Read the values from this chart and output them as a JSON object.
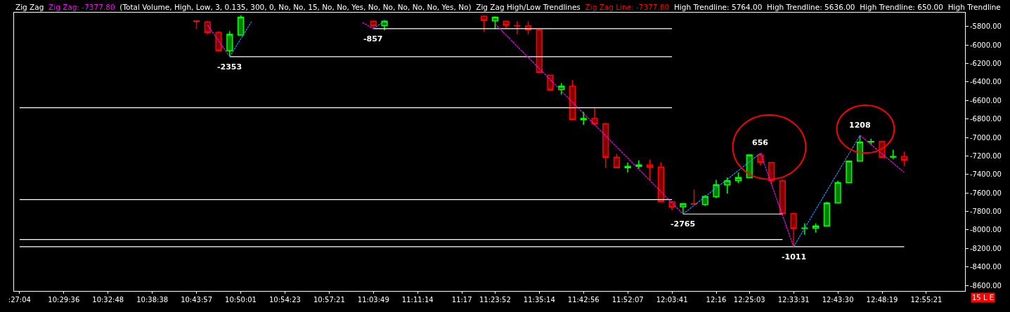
{
  "chart_data": {
    "type": "candlestick",
    "annotations": [
      "Zig Zag",
      "Zig Zag: -7377.80",
      "(Total Volume, High, Low, 3, 0.135, 300, 0, No, No, 15, No, No, Yes, No, No, No, No, No, Yes, No)",
      "Zig Zag High/Low Trendlines",
      "Zig Zag Line: -7377.80",
      "High Trendline: 5764.00",
      "High Trendline: 5636.00",
      "High Trendline: 650.00",
      "High Trendline",
      {
        "text": "-2353",
        "y": -6126
      },
      {
        "text": "-857",
        "y": -5823
      },
      {
        "text": "-2765",
        "y": -7828
      },
      {
        "text": "656",
        "y": -7170
      },
      {
        "text": "-1011",
        "y": -8182
      },
      {
        "text": "1208",
        "y": -6977
      },
      "15 L E"
    ],
    "categories": [
      ":27:04",
      null,
      null,
      null,
      "10:29:36",
      null,
      null,
      null,
      "10:32:48",
      null,
      null,
      null,
      "10:38:38",
      null,
      null,
      null,
      "10:43:57",
      null,
      null,
      null,
      "10:50:01",
      null,
      null,
      null,
      "10:54:23",
      null,
      null,
      null,
      "10:57:21",
      null,
      null,
      null,
      "11:03:49",
      null,
      null,
      null,
      "11:11:14",
      null,
      null,
      null,
      "11:17",
      null,
      null,
      "11:23:52",
      null,
      null,
      null,
      "11:35:14",
      null,
      null,
      null,
      "11:42:56",
      null,
      null,
      null,
      "11:52:07",
      null,
      null,
      null,
      "12:03:41",
      null,
      null,
      null,
      "12:16",
      null,
      null,
      "12:25:03",
      null,
      null,
      null,
      "12:33:31",
      null,
      null,
      null,
      "12:43:30",
      null,
      null,
      null,
      "12:48:19",
      null,
      null,
      null,
      "12:55:21",
      null,
      null,
      null
    ],
    "ylim": [
      -8660,
      -5650
    ],
    "yticks": [
      {
        "value": -5800,
        "label": "-5800.00"
      },
      {
        "value": -6000,
        "label": "-6000.00"
      },
      {
        "value": -6200,
        "label": "-6200.00"
      },
      {
        "value": -6400,
        "label": "-6400.00"
      },
      {
        "value": -6600,
        "label": "-6600.00"
      },
      {
        "value": -6800,
        "label": "-6800.00"
      },
      {
        "value": -7000,
        "label": "-7000.00"
      },
      {
        "value": -7200,
        "label": "-7200.00"
      },
      {
        "value": -7400,
        "label": "-7400.00"
      },
      {
        "value": -7600,
        "label": "-7600.00"
      },
      {
        "value": -7800,
        "label": "-7800.00"
      },
      {
        "value": -8000,
        "label": "-8000.00"
      },
      {
        "value": -8200,
        "label": "-8200.00"
      },
      {
        "value": -8400,
        "label": "-8400.00"
      },
      {
        "value": -8600,
        "label": "-8600.00"
      }
    ],
    "series": [
      {
        "colors": [
          null,
          null,
          null,
          null,
          null,
          null,
          null,
          null,
          null,
          null,
          null,
          null,
          null,
          null,
          null,
          null,
          "#ff0000",
          "#ff0000",
          "#ff0000",
          "#00ff00",
          "#00ff00",
          null,
          null,
          null,
          null,
          null,
          null,
          null,
          null,
          null,
          null,
          null,
          "#ff0000",
          "#00ff00",
          null,
          null,
          null,
          null,
          null,
          null,
          null,
          null,
          "#ff0000",
          "#00ff00",
          "#ff0000",
          "#ff0000",
          "#ff0000",
          "#ff0000",
          "#ff0000",
          "#00ff00",
          "#ff0000",
          "#00ff00",
          "#ff0000",
          "#ff0000",
          "#ff0000",
          "#00ff00",
          "#00ff00",
          "#ff0000",
          "#ff0000",
          "#ff0000",
          "#00ff00",
          "#ff0000",
          "#00ff00",
          "#00ff00",
          "#00ff00",
          "#00ff00",
          "#00ff00",
          "#ff0000",
          "#ff0000",
          "#ff0000",
          "#ff0000",
          "#00ff00",
          "#00ff00",
          "#00ff00",
          "#00ff00",
          "#00ff00",
          "#00ff00",
          "#00ff00",
          "#ff0000",
          "#00ff00",
          "#ff0000",
          null,
          null,
          null,
          null,
          null
        ],
        "ohlc": [
          null,
          null,
          null,
          null,
          null,
          null,
          null,
          null,
          null,
          null,
          null,
          null,
          null,
          null,
          null,
          null,
          [
            -5740,
            -5740,
            -5828,
            -5745
          ],
          [
            -5750,
            -5740,
            -5885,
            -5864
          ],
          [
            -5864,
            -5850,
            -6062,
            -6062
          ],
          [
            -6062,
            -5850,
            -6126,
            -5885
          ],
          [
            -5892,
            -5680,
            -5892,
            -5700
          ],
          null,
          null,
          null,
          null,
          null,
          null,
          null,
          null,
          null,
          null,
          null,
          [
            -5743,
            -5735,
            -5823,
            -5793
          ],
          [
            -5793,
            -5730,
            -5842,
            -5743
          ],
          null,
          null,
          null,
          null,
          null,
          null,
          null,
          null,
          [
            -5690,
            -5680,
            -5857,
            -5735
          ],
          [
            -5740,
            -5690,
            -5828,
            -5700
          ],
          [
            -5743,
            -5740,
            -5814,
            -5786
          ],
          [
            -5790,
            -5743,
            -5885,
            -5795
          ],
          [
            -5795,
            -5743,
            -5885,
            -5838
          ],
          [
            -5838,
            -5838,
            -6298,
            -6298
          ],
          [
            -6327,
            -6327,
            -6493,
            -6485
          ],
          [
            -6483,
            -6412,
            -6535,
            -6447
          ],
          [
            -6447,
            -6379,
            -6809,
            -6809
          ],
          [
            -6809,
            -6722,
            -6863,
            -6795
          ],
          [
            -6795,
            -6679,
            -6868,
            -6851
          ],
          [
            -6851,
            -6840,
            -7329,
            -7213
          ],
          [
            -7213,
            -7175,
            -7327,
            -7327
          ],
          [
            -7327,
            -7270,
            -7379,
            -7312
          ],
          [
            -7312,
            -7246,
            -7341,
            -7298
          ],
          [
            -7298,
            -7239,
            -7466,
            -7319
          ],
          [
            -7319,
            -7268,
            -7695,
            -7695
          ],
          [
            -7695,
            -7690,
            -7787,
            -7754
          ],
          [
            -7751,
            -7716,
            -7828,
            -7716
          ],
          [
            -7716,
            -7565,
            -7723,
            -7722
          ],
          [
            -7726,
            -7624,
            -7740,
            -7638
          ],
          [
            -7641,
            -7459,
            -7655,
            -7511
          ],
          [
            -7513,
            -7433,
            -7607,
            -7468
          ],
          [
            -7468,
            -7381,
            -7492,
            -7433
          ],
          [
            -7436,
            -7190,
            -7436,
            -7190
          ],
          [
            -7190,
            -7170,
            -7304,
            -7270
          ],
          [
            -7270,
            -7265,
            -7511,
            -7468
          ],
          [
            -7468,
            -7447,
            -7825,
            -7825
          ],
          [
            -7822,
            -7820,
            -8182,
            -7986
          ],
          [
            -7983,
            -7929,
            -8052,
            -7979
          ],
          [
            -7981,
            -7929,
            -8028,
            -7957
          ],
          [
            -7957,
            -7695,
            -7957,
            -7709
          ],
          [
            -7709,
            -7468,
            -7709,
            -7489
          ],
          [
            -7489,
            -7256,
            -7489,
            -7256
          ],
          [
            -7256,
            -6977,
            -7256,
            -7050
          ],
          [
            -7047,
            -7012,
            -7076,
            -7043
          ],
          [
            -7043,
            -7033,
            -7216,
            -7216
          ],
          [
            -7211,
            -7133,
            -7232,
            -7207
          ],
          [
            -7206,
            -7154,
            -7308,
            -7244
          ],
          null,
          null,
          null,
          null,
          null
        ]
      },
      {
        "type": "line",
        "color": "#ffffff",
        "line_style": "solid",
        "values": [
          null,
          null,
          null,
          null,
          null,
          null,
          null,
          null,
          null,
          null,
          null,
          null,
          null,
          null,
          null,
          null,
          null,
          null,
          null,
          null,
          null,
          null,
          null,
          null,
          null,
          null,
          null,
          null,
          null,
          null,
          null,
          null,
          -5823,
          null,
          null,
          null,
          null,
          null,
          null,
          null,
          null,
          null,
          null,
          null,
          null,
          null,
          null,
          null,
          null,
          null,
          null,
          null,
          null,
          null,
          null,
          null,
          null,
          null,
          null,
          -5823,
          null,
          null,
          null,
          null,
          null,
          null,
          null,
          null,
          null,
          null,
          null,
          null,
          null,
          null,
          null,
          null,
          null,
          null,
          null,
          null,
          null,
          null,
          null,
          null,
          null,
          null
        ]
      },
      {
        "type": "line",
        "color": "#ffffff",
        "line_style": "solid",
        "values": [
          null,
          null,
          null,
          null,
          null,
          null,
          null,
          null,
          null,
          null,
          null,
          null,
          null,
          null,
          null,
          null,
          null,
          null,
          null,
          -6126,
          null,
          null,
          null,
          null,
          null,
          null,
          null,
          null,
          null,
          null,
          null,
          null,
          null,
          null,
          null,
          null,
          null,
          null,
          null,
          null,
          null,
          null,
          null,
          null,
          null,
          null,
          null,
          null,
          null,
          null,
          null,
          null,
          null,
          null,
          null,
          null,
          null,
          null,
          null,
          -6126,
          null,
          null,
          null,
          null,
          null,
          null,
          null,
          null,
          null,
          null,
          null,
          null,
          null,
          null,
          null,
          null,
          null,
          null,
          null,
          null,
          null,
          null,
          null,
          null,
          null,
          null
        ]
      },
      {
        "type": "line",
        "color": "#ffffff",
        "line_style": "solid",
        "values": [
          -6679,
          null,
          null,
          null,
          null,
          null,
          null,
          null,
          null,
          null,
          null,
          null,
          null,
          null,
          null,
          null,
          null,
          null,
          null,
          null,
          null,
          null,
          null,
          null,
          null,
          null,
          null,
          null,
          null,
          null,
          null,
          null,
          null,
          null,
          null,
          null,
          null,
          null,
          null,
          null,
          null,
          null,
          null,
          null,
          null,
          null,
          null,
          null,
          null,
          null,
          null,
          null,
          null,
          null,
          null,
          null,
          null,
          null,
          null,
          -6679,
          null,
          null,
          null,
          null,
          null,
          null,
          null,
          null,
          null,
          null,
          null,
          null,
          null,
          null,
          null,
          null,
          null,
          null,
          null,
          null,
          null,
          null,
          null,
          null,
          null,
          null
        ]
      },
      {
        "type": "line",
        "color": "#ffffff",
        "line_style": "solid",
        "values": [
          -7672,
          null,
          null,
          null,
          null,
          null,
          null,
          null,
          null,
          null,
          null,
          null,
          null,
          null,
          null,
          null,
          null,
          null,
          null,
          null,
          null,
          null,
          null,
          null,
          null,
          null,
          null,
          null,
          null,
          null,
          null,
          null,
          null,
          null,
          null,
          null,
          null,
          null,
          null,
          null,
          null,
          null,
          null,
          null,
          null,
          null,
          null,
          null,
          null,
          null,
          null,
          null,
          null,
          null,
          null,
          null,
          null,
          null,
          null,
          -7672,
          null,
          null,
          null,
          null,
          null,
          null,
          null,
          null,
          null,
          null,
          null,
          null,
          null,
          null,
          null,
          null,
          null,
          null,
          null,
          null,
          null,
          null,
          null,
          null,
          null,
          null
        ]
      },
      {
        "type": "line",
        "color": "#ffffff",
        "line_style": "solid",
        "values": [
          null,
          null,
          null,
          null,
          null,
          null,
          null,
          null,
          null,
          null,
          null,
          null,
          null,
          null,
          null,
          null,
          null,
          null,
          null,
          null,
          null,
          null,
          null,
          null,
          null,
          null,
          null,
          null,
          null,
          null,
          null,
          null,
          null,
          null,
          null,
          null,
          null,
          null,
          null,
          null,
          null,
          null,
          null,
          null,
          null,
          null,
          null,
          null,
          null,
          null,
          null,
          null,
          null,
          null,
          null,
          null,
          null,
          null,
          null,
          null,
          -7828,
          null,
          null,
          null,
          null,
          null,
          null,
          null,
          null,
          -7828,
          null,
          null,
          null,
          null,
          null,
          null,
          null,
          null,
          null,
          null,
          null,
          null,
          null,
          null,
          null,
          null
        ]
      },
      {
        "type": "line",
        "color": "#ffffff",
        "line_style": "solid",
        "values": [
          -8104,
          null,
          null,
          null,
          null,
          null,
          null,
          null,
          null,
          null,
          null,
          null,
          null,
          null,
          null,
          null,
          null,
          null,
          null,
          null,
          null,
          null,
          null,
          null,
          null,
          null,
          null,
          null,
          null,
          null,
          null,
          null,
          null,
          null,
          null,
          null,
          null,
          null,
          null,
          null,
          null,
          null,
          null,
          null,
          null,
          null,
          null,
          null,
          null,
          null,
          null,
          null,
          null,
          null,
          null,
          null,
          null,
          null,
          null,
          null,
          null,
          null,
          null,
          null,
          null,
          null,
          null,
          null,
          null,
          -8104,
          null,
          null,
          null,
          null,
          null,
          null,
          null,
          null,
          null,
          null,
          null,
          null,
          null,
          null,
          null,
          null
        ]
      },
      {
        "type": "line",
        "color": "#ffffff",
        "line_style": "solid",
        "values": [
          -8182,
          null,
          null,
          null,
          null,
          null,
          null,
          null,
          null,
          null,
          null,
          null,
          null,
          null,
          null,
          null,
          null,
          null,
          null,
          null,
          null,
          null,
          null,
          null,
          null,
          null,
          null,
          null,
          null,
          null,
          null,
          null,
          null,
          null,
          null,
          null,
          null,
          null,
          null,
          null,
          null,
          null,
          null,
          null,
          null,
          null,
          null,
          null,
          null,
          null,
          null,
          null,
          null,
          null,
          null,
          null,
          null,
          null,
          null,
          null,
          null,
          null,
          null,
          null,
          null,
          null,
          null,
          null,
          null,
          null,
          null,
          null,
          null,
          null,
          null,
          null,
          null,
          null,
          null,
          null,
          -8182,
          null,
          null,
          null,
          null,
          null
        ]
      },
      {
        "type": "line",
        "color": "#ff00ff",
        "line_style": "dotted",
        "values": [
          null,
          null,
          null,
          null,
          null,
          null,
          null,
          null,
          null,
          null,
          null,
          null,
          null,
          null,
          null,
          null,
          null,
          -5786,
          null,
          -6126,
          null,
          null,
          null,
          null,
          null,
          null,
          null,
          null,
          null,
          null,
          null,
          null,
          null,
          null,
          null,
          null,
          null,
          null,
          null,
          null,
          null,
          null,
          null,
          null,
          null,
          null,
          null,
          null,
          null,
          null,
          null,
          null,
          null,
          null,
          null,
          null,
          null,
          null,
          null,
          null,
          null,
          null,
          null,
          null,
          null,
          null,
          null,
          null,
          null,
          null,
          null,
          null,
          null,
          null,
          null,
          null,
          null,
          null,
          null,
          null,
          null,
          null,
          null,
          null,
          null,
          null
        ]
      },
      {
        "type": "line",
        "color": "#1e90ff",
        "line_style": "dotted",
        "values": [
          null,
          null,
          null,
          null,
          null,
          null,
          null,
          null,
          null,
          null,
          null,
          null,
          null,
          null,
          null,
          null,
          null,
          null,
          null,
          -6126,
          null,
          -5743,
          null,
          null,
          null,
          null,
          null,
          null,
          null,
          null,
          null,
          null,
          null,
          null,
          null,
          null,
          null,
          null,
          null,
          null,
          null,
          null,
          null,
          null,
          null,
          null,
          null,
          null,
          null,
          null,
          null,
          null,
          null,
          null,
          null,
          null,
          null,
          null,
          null,
          null,
          null,
          null,
          null,
          null,
          null,
          null,
          null,
          null,
          null,
          null,
          null,
          null,
          null,
          null,
          null,
          null,
          null,
          null,
          null,
          null,
          null,
          null,
          null,
          null,
          null,
          null
        ]
      },
      {
        "type": "line",
        "color": "#ff00ff",
        "line_style": "dotted",
        "values": [
          null,
          null,
          null,
          null,
          null,
          null,
          null,
          null,
          null,
          null,
          null,
          null,
          null,
          null,
          null,
          null,
          null,
          null,
          null,
          null,
          null,
          null,
          null,
          null,
          null,
          null,
          null,
          null,
          null,
          null,
          null,
          -5757,
          -5823,
          null,
          null,
          null,
          null,
          null,
          null,
          null,
          null,
          null,
          null,
          null,
          null,
          null,
          null,
          null,
          null,
          null,
          null,
          null,
          null,
          null,
          null,
          null,
          null,
          null,
          null,
          null,
          null,
          null,
          null,
          null,
          null,
          null,
          null,
          null,
          null,
          null,
          null,
          null,
          null,
          null,
          null,
          null,
          null,
          null,
          null,
          null,
          null,
          null,
          null,
          null,
          null,
          null
        ]
      },
      {
        "type": "line",
        "color": "#1e90ff",
        "line_style": "dotted",
        "values": [
          null,
          null,
          null,
          null,
          null,
          null,
          null,
          null,
          null,
          null,
          null,
          null,
          null,
          null,
          null,
          null,
          null,
          null,
          null,
          null,
          null,
          null,
          null,
          null,
          null,
          null,
          null,
          null,
          null,
          null,
          null,
          null,
          -5823,
          -5743,
          null,
          null,
          null,
          null,
          null,
          null,
          null,
          null,
          null,
          null,
          null,
          null,
          null,
          null,
          null,
          null,
          null,
          null,
          null,
          null,
          null,
          null,
          null,
          null,
          null,
          null,
          null,
          null,
          null,
          null,
          null,
          null,
          null,
          null,
          null,
          null,
          null,
          null,
          null,
          null,
          null,
          null,
          null,
          null,
          null,
          null,
          null,
          null,
          null,
          null,
          null,
          null
        ]
      },
      {
        "type": "line",
        "color": "#ff00ff",
        "line_style": "dotted",
        "values": [
          null,
          null,
          null,
          null,
          null,
          null,
          null,
          null,
          null,
          null,
          null,
          null,
          null,
          null,
          null,
          null,
          null,
          null,
          null,
          null,
          null,
          null,
          null,
          null,
          null,
          null,
          null,
          null,
          null,
          null,
          null,
          null,
          null,
          null,
          null,
          null,
          null,
          null,
          null,
          null,
          null,
          null,
          null,
          -5772,
          null,
          null,
          null,
          null,
          null,
          null,
          null,
          null,
          null,
          null,
          null,
          null,
          null,
          null,
          null,
          null,
          -7828,
          null,
          null,
          null,
          null,
          null,
          null,
          null,
          null,
          null,
          null,
          null,
          null,
          null,
          null,
          null,
          null,
          null,
          null,
          null,
          null,
          null,
          null,
          null,
          null,
          null
        ]
      },
      {
        "type": "line",
        "color": "#1e90ff",
        "line_style": "dotted",
        "values": [
          null,
          null,
          null,
          null,
          null,
          null,
          null,
          null,
          null,
          null,
          null,
          null,
          null,
          null,
          null,
          null,
          null,
          null,
          null,
          null,
          null,
          null,
          null,
          null,
          null,
          null,
          null,
          null,
          null,
          null,
          null,
          null,
          null,
          null,
          null,
          null,
          null,
          null,
          null,
          null,
          null,
          null,
          null,
          null,
          null,
          null,
          null,
          null,
          null,
          null,
          null,
          null,
          null,
          null,
          null,
          null,
          null,
          null,
          null,
          null,
          -7828,
          null,
          null,
          null,
          null,
          null,
          null,
          -7170,
          null,
          null,
          null,
          null,
          null,
          null,
          null,
          null,
          null,
          null,
          null,
          null,
          null,
          null,
          null,
          null,
          null,
          null
        ]
      },
      {
        "type": "line",
        "color": "#ff00ff",
        "line_style": "dotted",
        "values": [
          null,
          null,
          null,
          null,
          null,
          null,
          null,
          null,
          null,
          null,
          null,
          null,
          null,
          null,
          null,
          null,
          null,
          null,
          null,
          null,
          null,
          null,
          null,
          null,
          null,
          null,
          null,
          null,
          null,
          null,
          null,
          null,
          null,
          null,
          null,
          null,
          null,
          null,
          null,
          null,
          null,
          null,
          null,
          null,
          null,
          null,
          null,
          null,
          null,
          null,
          null,
          null,
          null,
          null,
          null,
          null,
          null,
          null,
          null,
          null,
          null,
          null,
          null,
          null,
          null,
          null,
          null,
          -7170,
          null,
          null,
          -8182,
          null,
          null,
          null,
          null,
          null,
          null,
          null,
          null,
          null,
          null,
          null,
          null,
          null,
          null,
          null
        ]
      },
      {
        "type": "line",
        "color": "#1e90ff",
        "line_style": "dotted",
        "values": [
          null,
          null,
          null,
          null,
          null,
          null,
          null,
          null,
          null,
          null,
          null,
          null,
          null,
          null,
          null,
          null,
          null,
          null,
          null,
          null,
          null,
          null,
          null,
          null,
          null,
          null,
          null,
          null,
          null,
          null,
          null,
          null,
          null,
          null,
          null,
          null,
          null,
          null,
          null,
          null,
          null,
          null,
          null,
          null,
          null,
          null,
          null,
          null,
          null,
          null,
          null,
          null,
          null,
          null,
          null,
          null,
          null,
          null,
          null,
          null,
          null,
          null,
          null,
          null,
          null,
          null,
          null,
          null,
          null,
          null,
          -8182,
          null,
          null,
          null,
          null,
          null,
          -6977,
          null,
          null,
          null,
          null,
          null,
          null,
          null,
          null,
          null
        ]
      },
      {
        "type": "line",
        "color": "#ff00ff",
        "line_style": "dotted",
        "values": [
          null,
          null,
          null,
          null,
          null,
          null,
          null,
          null,
          null,
          null,
          null,
          null,
          null,
          null,
          null,
          null,
          null,
          null,
          null,
          null,
          null,
          null,
          null,
          null,
          null,
          null,
          null,
          null,
          null,
          null,
          null,
          null,
          null,
          null,
          null,
          null,
          null,
          null,
          null,
          null,
          null,
          null,
          null,
          null,
          null,
          null,
          null,
          null,
          null,
          null,
          null,
          null,
          null,
          null,
          null,
          null,
          null,
          null,
          null,
          null,
          null,
          null,
          null,
          null,
          null,
          null,
          null,
          null,
          null,
          null,
          null,
          null,
          null,
          null,
          null,
          null,
          -6977,
          null,
          null,
          null,
          -7378,
          null,
          null,
          null,
          null,
          null
        ]
      }
    ]
  }
}
